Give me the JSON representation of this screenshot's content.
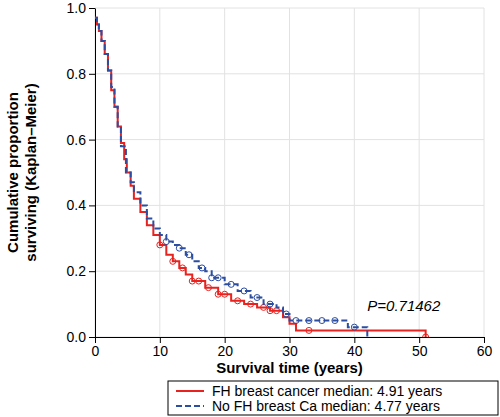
{
  "chart_data": {
    "type": "step",
    "ylabel": [
      "Cumulative proportion",
      "surviving (Kaplan–Meier)"
    ],
    "xlabel": "Survival time (years)",
    "xlim": [
      0,
      60
    ],
    "xticks": [
      0,
      10,
      20,
      30,
      40,
      50,
      60
    ],
    "ylim": [
      0,
      1
    ],
    "yticks": [
      {
        "value": 0,
        "label": "0.0"
      },
      {
        "value": 0.2,
        "label": "0.2"
      },
      {
        "value": 0.4,
        "label": "0.4"
      },
      {
        "value": 0.6,
        "label": "0.6"
      },
      {
        "value": 0.8,
        "label": "0.8"
      },
      {
        "value": 1,
        "label": "1.0"
      }
    ],
    "grid": true,
    "legend": "bottom",
    "annotations": [
      {
        "text": "P=0.71462",
        "x": 42,
        "y": 0.08
      }
    ],
    "series": [
      {
        "name": "FH breast cancer median: 4.91 years",
        "color": "#e8221f",
        "line_style": "solid",
        "marker": "circle",
        "x": [
          0,
          0.3,
          0.6,
          1,
          1.5,
          2,
          2.5,
          3,
          3.5,
          4,
          4.5,
          4.91,
          5.5,
          6,
          7,
          8,
          9,
          10,
          11,
          12,
          13,
          14,
          15,
          17,
          19,
          21,
          23,
          25,
          27,
          29,
          30,
          31,
          51
        ],
        "values": [
          0.97,
          0.95,
          0.93,
          0.9,
          0.86,
          0.81,
          0.75,
          0.7,
          0.64,
          0.59,
          0.54,
          0.5,
          0.46,
          0.42,
          0.38,
          0.34,
          0.31,
          0.28,
          0.25,
          0.23,
          0.21,
          0.19,
          0.17,
          0.15,
          0.13,
          0.11,
          0.1,
          0.09,
          0.08,
          0.06,
          0.04,
          0.02,
          0.0
        ],
        "censored": {
          "x": [
            10,
            12,
            13.5,
            15,
            16,
            17.5,
            19,
            20,
            22,
            24,
            26,
            27,
            28,
            33,
            51
          ],
          "y": [
            0.28,
            0.23,
            0.21,
            0.17,
            0.17,
            0.15,
            0.13,
            0.13,
            0.11,
            0.1,
            0.09,
            0.08,
            0.08,
            0.02,
            0.0
          ]
        }
      },
      {
        "name": "No FH breast Ca median: 4.77 years",
        "color": "#2b4ea2",
        "line_style": "dashed",
        "marker": "circle",
        "x": [
          0,
          0.3,
          0.6,
          1,
          1.5,
          2,
          2.5,
          3,
          3.5,
          4,
          4.77,
          5.5,
          6,
          7,
          8,
          9,
          10,
          11,
          12,
          13,
          14,
          15,
          16,
          17,
          18,
          20,
          22,
          24,
          26,
          28,
          29,
          30,
          39,
          42
        ],
        "values": [
          0.97,
          0.95,
          0.93,
          0.9,
          0.86,
          0.81,
          0.76,
          0.7,
          0.64,
          0.58,
          0.5,
          0.47,
          0.44,
          0.4,
          0.36,
          0.33,
          0.31,
          0.29,
          0.28,
          0.27,
          0.25,
          0.23,
          0.21,
          0.2,
          0.18,
          0.16,
          0.14,
          0.12,
          0.1,
          0.09,
          0.07,
          0.05,
          0.03,
          0.0
        ],
        "censored": {
          "x": [
            11,
            13,
            14.5,
            16.5,
            18,
            19,
            21,
            23,
            25,
            27,
            29.5,
            31,
            33,
            35,
            37,
            40
          ],
          "y": [
            0.29,
            0.27,
            0.25,
            0.21,
            0.18,
            0.18,
            0.16,
            0.14,
            0.12,
            0.1,
            0.07,
            0.05,
            0.05,
            0.05,
            0.05,
            0.03
          ]
        }
      }
    ]
  }
}
